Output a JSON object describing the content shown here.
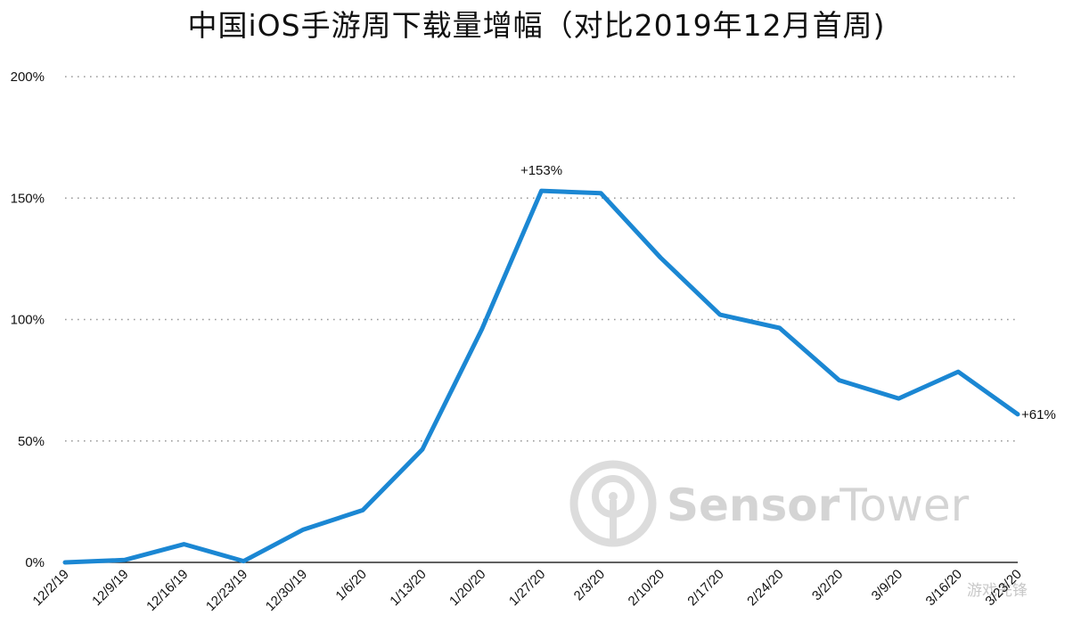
{
  "chart_data": {
    "type": "line",
    "title": "中国iOS手游周下载量增幅（对比2019年12月首周)",
    "categories": [
      "12/2/19",
      "12/9/19",
      "12/16/19",
      "12/23/19",
      "12/30/19",
      "1/6/20",
      "1/13/20",
      "1/20/20",
      "1/27/20",
      "2/3/20",
      "2/10/20",
      "2/17/20",
      "2/24/20",
      "3/2/20",
      "3/9/20",
      "3/16/20",
      "3/23/20"
    ],
    "series": [
      {
        "values": [
          0,
          1,
          7.5,
          0.5,
          13.5,
          21.5,
          46.5,
          96,
          153,
          152,
          125.5,
          102,
          96.5,
          75,
          67.5,
          78.5,
          61
        ],
        "color": "#1b87d3"
      }
    ],
    "yticks": [
      "0%",
      "50%",
      "100%",
      "150%",
      "200%"
    ],
    "ylim": [
      0,
      200
    ],
    "grid": true,
    "annotations": [
      {
        "text": "+153%",
        "index": 8
      },
      {
        "text": "+61%",
        "index": 16
      }
    ]
  },
  "watermark": {
    "brand_a": "Sensor",
    "brand_b": "Tower",
    "corner_text": "游戏先锋"
  }
}
